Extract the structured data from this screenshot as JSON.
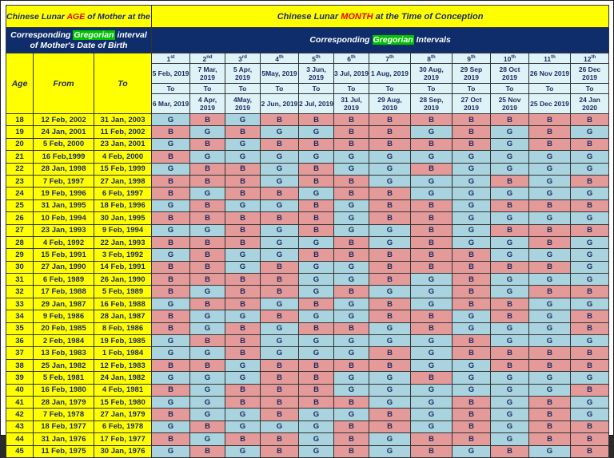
{
  "header": {
    "title_left_parts": [
      "Chinese Lunar ",
      "AGE",
      " of Mother at the Time of Conception"
    ],
    "title_right_parts": [
      "Chinese Lunar ",
      "MONTH",
      " at the Time of Conception"
    ],
    "sub_left_parts": [
      "Corresponding ",
      "Gregorian",
      " interval of Mother's Date of Birth"
    ],
    "sub_right_parts": [
      "Corresponding ",
      "Gregorian",
      " Intervals"
    ],
    "col_age": "Age",
    "col_from": "From",
    "col_to": "To"
  },
  "months": [
    {
      "num": "1",
      "sup": "st",
      "start": "5 Feb, 2019",
      "to": "To",
      "end": "6 Mar, 2019"
    },
    {
      "num": "2",
      "sup": "nd",
      "start": "7 Mar, 2019",
      "to": "To",
      "end": "4 Apr, 2019"
    },
    {
      "num": "3",
      "sup": "rd",
      "start": "5 Apr, 2019",
      "to": "To",
      "end": "4May, 2019"
    },
    {
      "num": "4",
      "sup": "th",
      "start": "5May, 2019",
      "to": "To",
      "end": "2 Jun, 2019"
    },
    {
      "num": "5",
      "sup": "th",
      "start": "3 Jun, 2019",
      "to": "To",
      "end": "2 Jul, 2019"
    },
    {
      "num": "6",
      "sup": "th",
      "start": "3 Jul, 2019",
      "to": "To",
      "end": "31 Jul, 2019"
    },
    {
      "num": "7",
      "sup": "th",
      "start": "1 Aug, 2019",
      "to": "To",
      "end": "29 Aug, 2019"
    },
    {
      "num": "8",
      "sup": "th",
      "start": "30 Aug, 2019",
      "to": "To",
      "end": "28 Sep, 2019"
    },
    {
      "num": "9",
      "sup": "th",
      "start": "29 Sep 2019",
      "to": "To",
      "end": "27 Oct 2019"
    },
    {
      "num": "10",
      "sup": "th",
      "start": "28 Oct 2019",
      "to": "To",
      "end": "25 Nov 2019"
    },
    {
      "num": "11",
      "sup": "th",
      "start": "26 Nov 2019",
      "to": "To",
      "end": "25 Dec 2019"
    },
    {
      "num": "12",
      "sup": "th",
      "start": "26 Dec 2019",
      "to": "To",
      "end": "24 Jan 2020"
    }
  ],
  "colors": {
    "girl_cell": "#a9d3de",
    "boy_cell": "#e59a9a",
    "header_yellow": "#ffff00",
    "header_navy": "#0f2d6b"
  },
  "rows": [
    {
      "age": "18",
      "from": "12 Feb, 2002",
      "to": "31 Jan, 2003",
      "cells": [
        "G",
        "B",
        "G",
        "B",
        "B",
        "B",
        "B",
        "B",
        "B",
        "B",
        "B",
        "B"
      ]
    },
    {
      "age": "19",
      "from": "24 Jan, 2001",
      "to": "11 Feb, 2002",
      "cells": [
        "B",
        "G",
        "B",
        "G",
        "G",
        "B",
        "B",
        "G",
        "B",
        "G",
        "B",
        "G"
      ]
    },
    {
      "age": "20",
      "from": "5 Feb, 2000",
      "to": "23 Jan, 2001",
      "cells": [
        "G",
        "B",
        "G",
        "B",
        "B",
        "B",
        "B",
        "B",
        "B",
        "G",
        "B",
        "B"
      ]
    },
    {
      "age": "21",
      "from": "16 Feb,1999",
      "to": "4 Feb, 2000",
      "cells": [
        "B",
        "G",
        "G",
        "G",
        "G",
        "G",
        "G",
        "G",
        "G",
        "G",
        "G",
        "G"
      ]
    },
    {
      "age": "22",
      "from": "28 Jan, 1998",
      "to": "15 Feb, 1999",
      "cells": [
        "G",
        "B",
        "B",
        "G",
        "B",
        "G",
        "G",
        "B",
        "G",
        "G",
        "G",
        "G"
      ]
    },
    {
      "age": "23",
      "from": "7 Feb, 1997",
      "to": "27 Jan, 1998",
      "cells": [
        "B",
        "B",
        "B",
        "G",
        "B",
        "B",
        "G",
        "G",
        "G",
        "B",
        "G",
        "B"
      ]
    },
    {
      "age": "24",
      "from": "19 Feb, 1996",
      "to": "6 Feb, 1997",
      "cells": [
        "B",
        "G",
        "B",
        "B",
        "G",
        "B",
        "B",
        "G",
        "G",
        "G",
        "G",
        "G"
      ]
    },
    {
      "age": "25",
      "from": "31 Jan, 1995",
      "to": "18 Feb, 1996",
      "cells": [
        "G",
        "B",
        "G",
        "G",
        "B",
        "G",
        "B",
        "B",
        "G",
        "B",
        "B",
        "B"
      ]
    },
    {
      "age": "26",
      "from": "10 Feb, 1994",
      "to": "30 Jan, 1995",
      "cells": [
        "B",
        "B",
        "B",
        "B",
        "B",
        "G",
        "B",
        "B",
        "G",
        "G",
        "G",
        "G"
      ]
    },
    {
      "age": "27",
      "from": "23 Jan, 1993",
      "to": "9 Feb, 1994",
      "cells": [
        "G",
        "G",
        "B",
        "G",
        "B",
        "G",
        "G",
        "B",
        "G",
        "B",
        "B",
        "B"
      ]
    },
    {
      "age": "28",
      "from": "4 Feb, 1992",
      "to": "22 Jan, 1993",
      "cells": [
        "B",
        "B",
        "B",
        "G",
        "G",
        "B",
        "G",
        "B",
        "G",
        "G",
        "B",
        "G"
      ]
    },
    {
      "age": "29",
      "from": "15 Feb, 1991",
      "to": "3 Feb, 1992",
      "cells": [
        "G",
        "B",
        "G",
        "G",
        "B",
        "B",
        "B",
        "B",
        "B",
        "G",
        "G",
        "G"
      ]
    },
    {
      "age": "30",
      "from": "27 Jan, 1990",
      "to": "14 Feb, 1991",
      "cells": [
        "B",
        "B",
        "G",
        "B",
        "G",
        "G",
        "B",
        "B",
        "B",
        "B",
        "B",
        "G"
      ]
    },
    {
      "age": "31",
      "from": "6 Feb, 1989",
      "to": "26 Jan, 1990",
      "cells": [
        "B",
        "B",
        "B",
        "B",
        "G",
        "G",
        "B",
        "G",
        "B",
        "G",
        "G",
        "G"
      ]
    },
    {
      "age": "32",
      "from": "17 Feb, 1988",
      "to": "5 Feb, 1989",
      "cells": [
        "B",
        "G",
        "B",
        "B",
        "G",
        "B",
        "G",
        "G",
        "B",
        "G",
        "B",
        "B"
      ]
    },
    {
      "age": "33",
      "from": "29 Jan, 1987",
      "to": "16 Feb, 1988",
      "cells": [
        "G",
        "B",
        "B",
        "G",
        "B",
        "G",
        "B",
        "G",
        "B",
        "B",
        "G",
        "G"
      ]
    },
    {
      "age": "34",
      "from": "9 Feb, 1986",
      "to": "28 Jan, 1987",
      "cells": [
        "B",
        "G",
        "G",
        "B",
        "G",
        "G",
        "B",
        "B",
        "G",
        "B",
        "G",
        "B"
      ]
    },
    {
      "age": "35",
      "from": "20 Feb, 1985",
      "to": "8 Feb, 1986",
      "cells": [
        "B",
        "G",
        "B",
        "G",
        "B",
        "B",
        "G",
        "B",
        "G",
        "G",
        "G",
        "B"
      ]
    },
    {
      "age": "36",
      "from": "2 Feb, 1984",
      "to": "19 Feb, 1985",
      "cells": [
        "G",
        "B",
        "B",
        "G",
        "G",
        "G",
        "G",
        "G",
        "B",
        "G",
        "G",
        "G"
      ]
    },
    {
      "age": "37",
      "from": "13 Feb, 1983",
      "to": "1 Feb, 1984",
      "cells": [
        "G",
        "G",
        "B",
        "G",
        "G",
        "G",
        "B",
        "G",
        "B",
        "B",
        "B",
        "B"
      ]
    },
    {
      "age": "38",
      "from": "25 Jan, 1982",
      "to": "12 Feb, 1983",
      "cells": [
        "B",
        "B",
        "G",
        "B",
        "B",
        "B",
        "B",
        "G",
        "G",
        "B",
        "B",
        "B"
      ]
    },
    {
      "age": "39",
      "from": "5 Feb, 1981",
      "to": "24 Jan, 1982",
      "cells": [
        "G",
        "G",
        "G",
        "B",
        "B",
        "G",
        "G",
        "B",
        "G",
        "G",
        "G",
        "G"
      ]
    },
    {
      "age": "40",
      "from": "16 Feb, 1980",
      "to": "4 Feb, 1981",
      "cells": [
        "B",
        "G",
        "B",
        "B",
        "B",
        "G",
        "G",
        "G",
        "G",
        "G",
        "G",
        "B"
      ]
    },
    {
      "age": "41",
      "from": "28 Jan, 1979",
      "to": "15 Feb, 1980",
      "cells": [
        "G",
        "G",
        "B",
        "B",
        "B",
        "B",
        "G",
        "G",
        "B",
        "G",
        "B",
        "G"
      ]
    },
    {
      "age": "42",
      "from": "7 Feb, 1978",
      "to": "27 Jan, 1979",
      "cells": [
        "B",
        "G",
        "G",
        "B",
        "G",
        "G",
        "B",
        "G",
        "B",
        "G",
        "B",
        "G"
      ]
    },
    {
      "age": "43",
      "from": "18 Feb, 1977",
      "to": "6 Feb, 1978",
      "cells": [
        "G",
        "B",
        "G",
        "G",
        "G",
        "B",
        "B",
        "G",
        "B",
        "G",
        "B",
        "B"
      ]
    },
    {
      "age": "44",
      "from": "31 Jan, 1976",
      "to": "17 Feb, 1977",
      "cells": [
        "B",
        "G",
        "B",
        "B",
        "G",
        "B",
        "G",
        "B",
        "B",
        "G",
        "B",
        "B"
      ]
    },
    {
      "age": "45",
      "from": "11 Feb, 1975",
      "to": "30 Jan, 1976",
      "cells": [
        "G",
        "B",
        "G",
        "B",
        "G",
        "B",
        "G",
        "B",
        "G",
        "B",
        "G",
        "B"
      ]
    }
  ]
}
